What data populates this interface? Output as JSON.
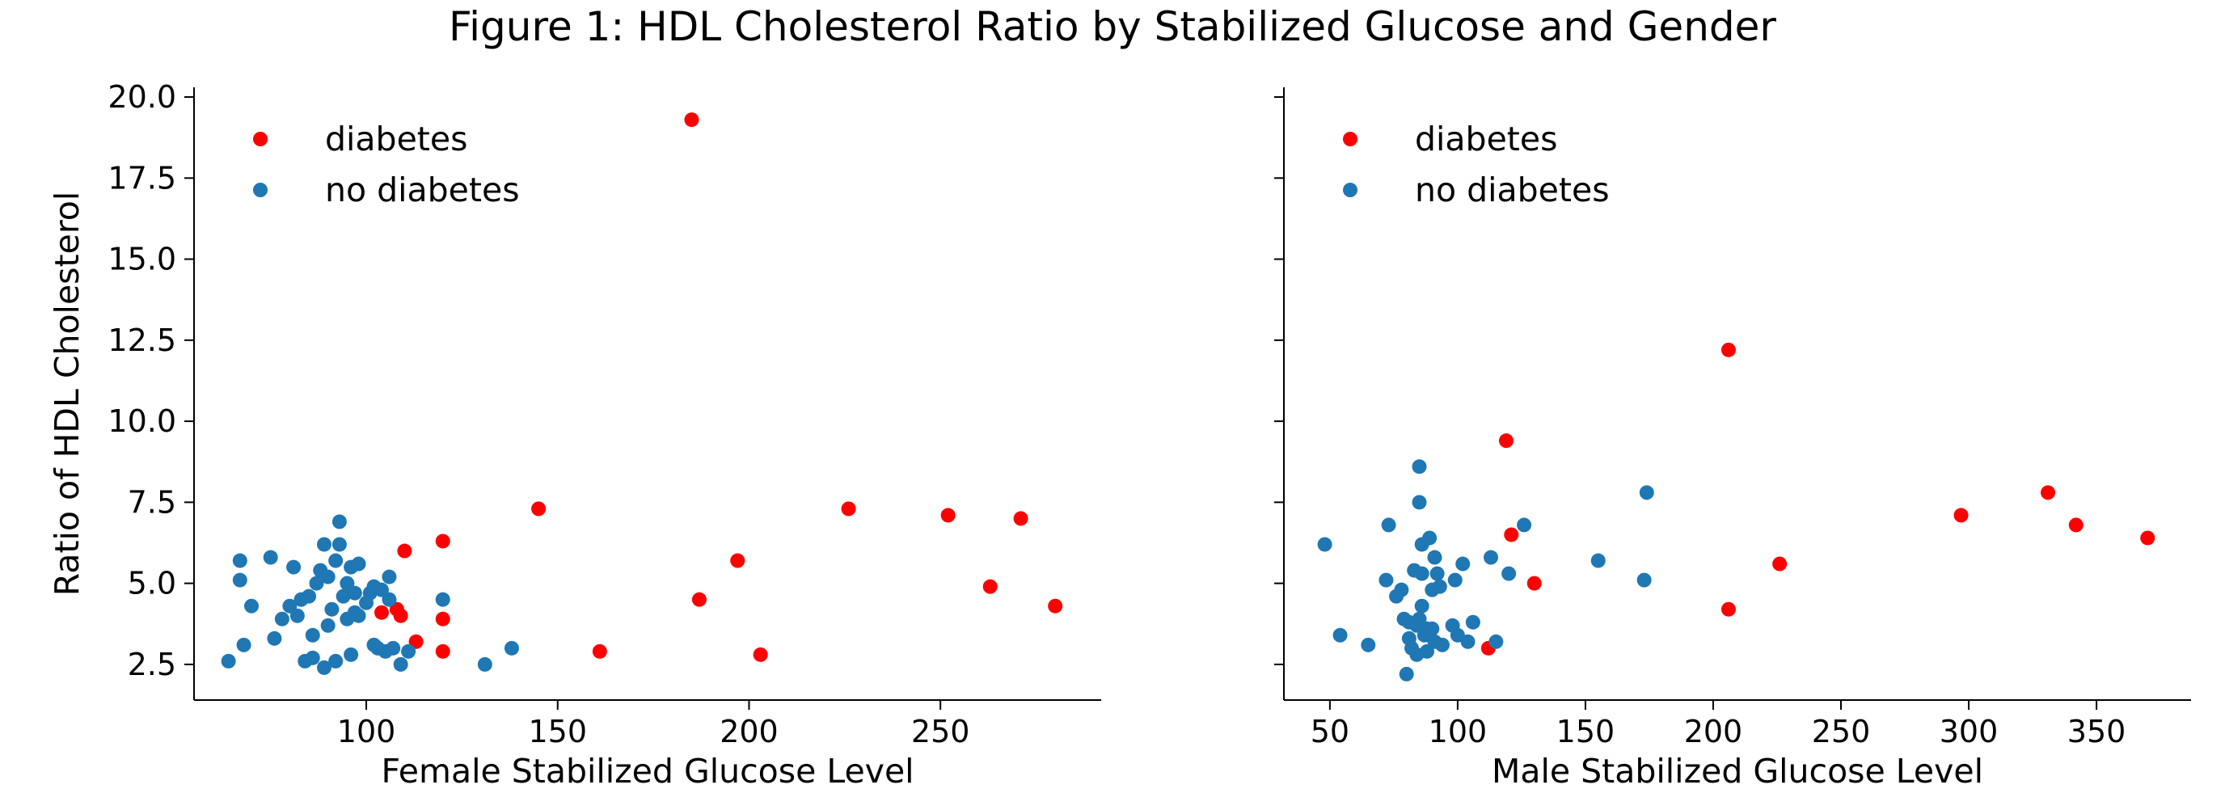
{
  "figure": {
    "title": "Figure 1: HDL Cholesterol Ratio by Stabilized Glucose and Gender"
  },
  "chart_data": [
    {
      "type": "scatter",
      "xlabel": "Female Stabilized Glucose Level",
      "ylabel": "Ratio of HDL Cholesterol",
      "xlim": [
        55,
        292
      ],
      "ylim": [
        1.4,
        20.3
      ],
      "xticks": [
        "100",
        "150",
        "200",
        "250"
      ],
      "yticks": [
        "2.5",
        "5.0",
        "7.5",
        "10.0",
        "12.5",
        "15.0",
        "17.5",
        "20.0"
      ],
      "legend": "upper-left",
      "series": [
        {
          "name": "diabetes",
          "color": "#ff0000",
          "points": [
            [
              185,
              19.3
            ],
            [
              110,
              6.0
            ],
            [
              120,
              6.3
            ],
            [
              145,
              7.3
            ],
            [
              104,
              4.1
            ],
            [
              108,
              4.2
            ],
            [
              109,
              4.0
            ],
            [
              113,
              3.2
            ],
            [
              120,
              3.9
            ],
            [
              120,
              2.9
            ],
            [
              161,
              2.9
            ],
            [
              187,
              4.5
            ],
            [
              197,
              5.7
            ],
            [
              203,
              2.8
            ],
            [
              226,
              7.3
            ],
            [
              252,
              7.1
            ],
            [
              263,
              4.9
            ],
            [
              271,
              7.0
            ],
            [
              280,
              4.3
            ]
          ]
        },
        {
          "name": "no diabetes",
          "color": "#1f77b4",
          "points": [
            [
              64,
              2.6
            ],
            [
              67,
              5.1
            ],
            [
              67,
              5.7
            ],
            [
              68,
              3.1
            ],
            [
              70,
              4.3
            ],
            [
              75,
              5.8
            ],
            [
              76,
              3.3
            ],
            [
              78,
              3.9
            ],
            [
              80,
              4.3
            ],
            [
              81,
              5.5
            ],
            [
              82,
              4.0
            ],
            [
              83,
              4.5
            ],
            [
              84,
              2.6
            ],
            [
              85,
              4.6
            ],
            [
              86,
              3.4
            ],
            [
              86,
              2.7
            ],
            [
              87,
              5.0
            ],
            [
              88,
              5.4
            ],
            [
              89,
              2.4
            ],
            [
              89,
              6.2
            ],
            [
              90,
              3.7
            ],
            [
              90,
              5.2
            ],
            [
              91,
              4.2
            ],
            [
              92,
              2.6
            ],
            [
              92,
              5.7
            ],
            [
              93,
              6.9
            ],
            [
              93,
              6.2
            ],
            [
              94,
              4.6
            ],
            [
              95,
              3.9
            ],
            [
              95,
              5.0
            ],
            [
              96,
              2.8
            ],
            [
              96,
              5.5
            ],
            [
              97,
              4.1
            ],
            [
              97,
              4.7
            ],
            [
              98,
              5.6
            ],
            [
              98,
              4.0
            ],
            [
              100,
              4.4
            ],
            [
              101,
              4.7
            ],
            [
              102,
              3.1
            ],
            [
              102,
              4.9
            ],
            [
              103,
              3.0
            ],
            [
              104,
              4.8
            ],
            [
              105,
              2.9
            ],
            [
              106,
              5.2
            ],
            [
              106,
              4.5
            ],
            [
              107,
              3.0
            ],
            [
              109,
              2.5
            ],
            [
              111,
              2.9
            ],
            [
              120,
              4.5
            ],
            [
              131,
              2.5
            ],
            [
              138,
              3.0
            ]
          ]
        }
      ]
    },
    {
      "type": "scatter",
      "xlabel": "Male Stabilized Glucose Level",
      "ylabel": "",
      "xlim": [
        32,
        387
      ],
      "ylim": [
        1.4,
        20.3
      ],
      "xticks": [
        "50",
        "100",
        "150",
        "200",
        "250",
        "300",
        "350"
      ],
      "yticks": [],
      "legend": "upper-left",
      "series": [
        {
          "name": "diabetes",
          "color": "#ff0000",
          "points": [
            [
              206,
              12.2
            ],
            [
              119,
              9.4
            ],
            [
              121,
              6.5
            ],
            [
              130,
              5.0
            ],
            [
              112,
              3.0
            ],
            [
              206,
              4.2
            ],
            [
              226,
              5.6
            ],
            [
              297,
              7.1
            ],
            [
              331,
              7.8
            ],
            [
              342,
              6.8
            ],
            [
              370,
              6.4
            ]
          ]
        },
        {
          "name": "no diabetes",
          "color": "#1f77b4",
          "points": [
            [
              48,
              6.2
            ],
            [
              54,
              3.4
            ],
            [
              65,
              3.1
            ],
            [
              72,
              5.1
            ],
            [
              73,
              6.8
            ],
            [
              76,
              4.6
            ],
            [
              78,
              4.8
            ],
            [
              79,
              3.9
            ],
            [
              80,
              2.2
            ],
            [
              81,
              3.3
            ],
            [
              81,
              3.8
            ],
            [
              82,
              3.0
            ],
            [
              83,
              5.4
            ],
            [
              84,
              3.7
            ],
            [
              84,
              2.8
            ],
            [
              85,
              8.6
            ],
            [
              85,
              7.5
            ],
            [
              85,
              3.9
            ],
            [
              86,
              6.2
            ],
            [
              86,
              5.3
            ],
            [
              86,
              4.3
            ],
            [
              87,
              3.4
            ],
            [
              88,
              3.6
            ],
            [
              88,
              2.9
            ],
            [
              89,
              6.4
            ],
            [
              90,
              3.6
            ],
            [
              90,
              4.8
            ],
            [
              91,
              5.8
            ],
            [
              91,
              3.2
            ],
            [
              92,
              5.3
            ],
            [
              93,
              4.9
            ],
            [
              94,
              3.1
            ],
            [
              98,
              3.7
            ],
            [
              99,
              5.1
            ],
            [
              100,
              3.4
            ],
            [
              102,
              5.6
            ],
            [
              104,
              3.2
            ],
            [
              106,
              3.8
            ],
            [
              113,
              5.8
            ],
            [
              115,
              3.2
            ],
            [
              120,
              5.3
            ],
            [
              126,
              6.8
            ],
            [
              155,
              5.7
            ],
            [
              173,
              5.1
            ],
            [
              174,
              7.8
            ]
          ]
        }
      ]
    }
  ]
}
